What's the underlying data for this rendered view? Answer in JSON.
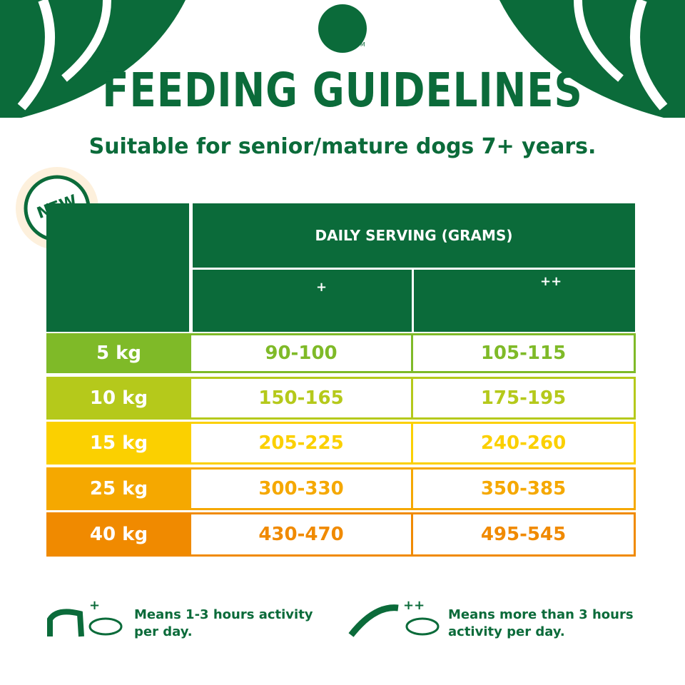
{
  "header": {
    "title": "FEEDING GUIDELINES",
    "trademark": "TM",
    "subtitle": "Suitable for senior/mature dogs 7+ years.",
    "badge": "NEW"
  },
  "table": {
    "heading": "DAILY SERVING (GRAMS)",
    "columns": [
      "+",
      "++"
    ],
    "rows": [
      [
        "5 kg",
        "90-100",
        "105-115"
      ],
      [
        "10 kg",
        "150-165",
        "175-195"
      ],
      [
        "15 kg",
        "205-225",
        "240-260"
      ],
      [
        "25 kg",
        "300-330",
        "350-385"
      ],
      [
        "40 kg",
        "430-470",
        "495-545"
      ]
    ]
  },
  "legend": [
    {
      "symbol": "+",
      "text": "Means 1-3 hours activity per day."
    },
    {
      "symbol": "++",
      "text": "Means more than 3 hours activity per day."
    }
  ]
}
